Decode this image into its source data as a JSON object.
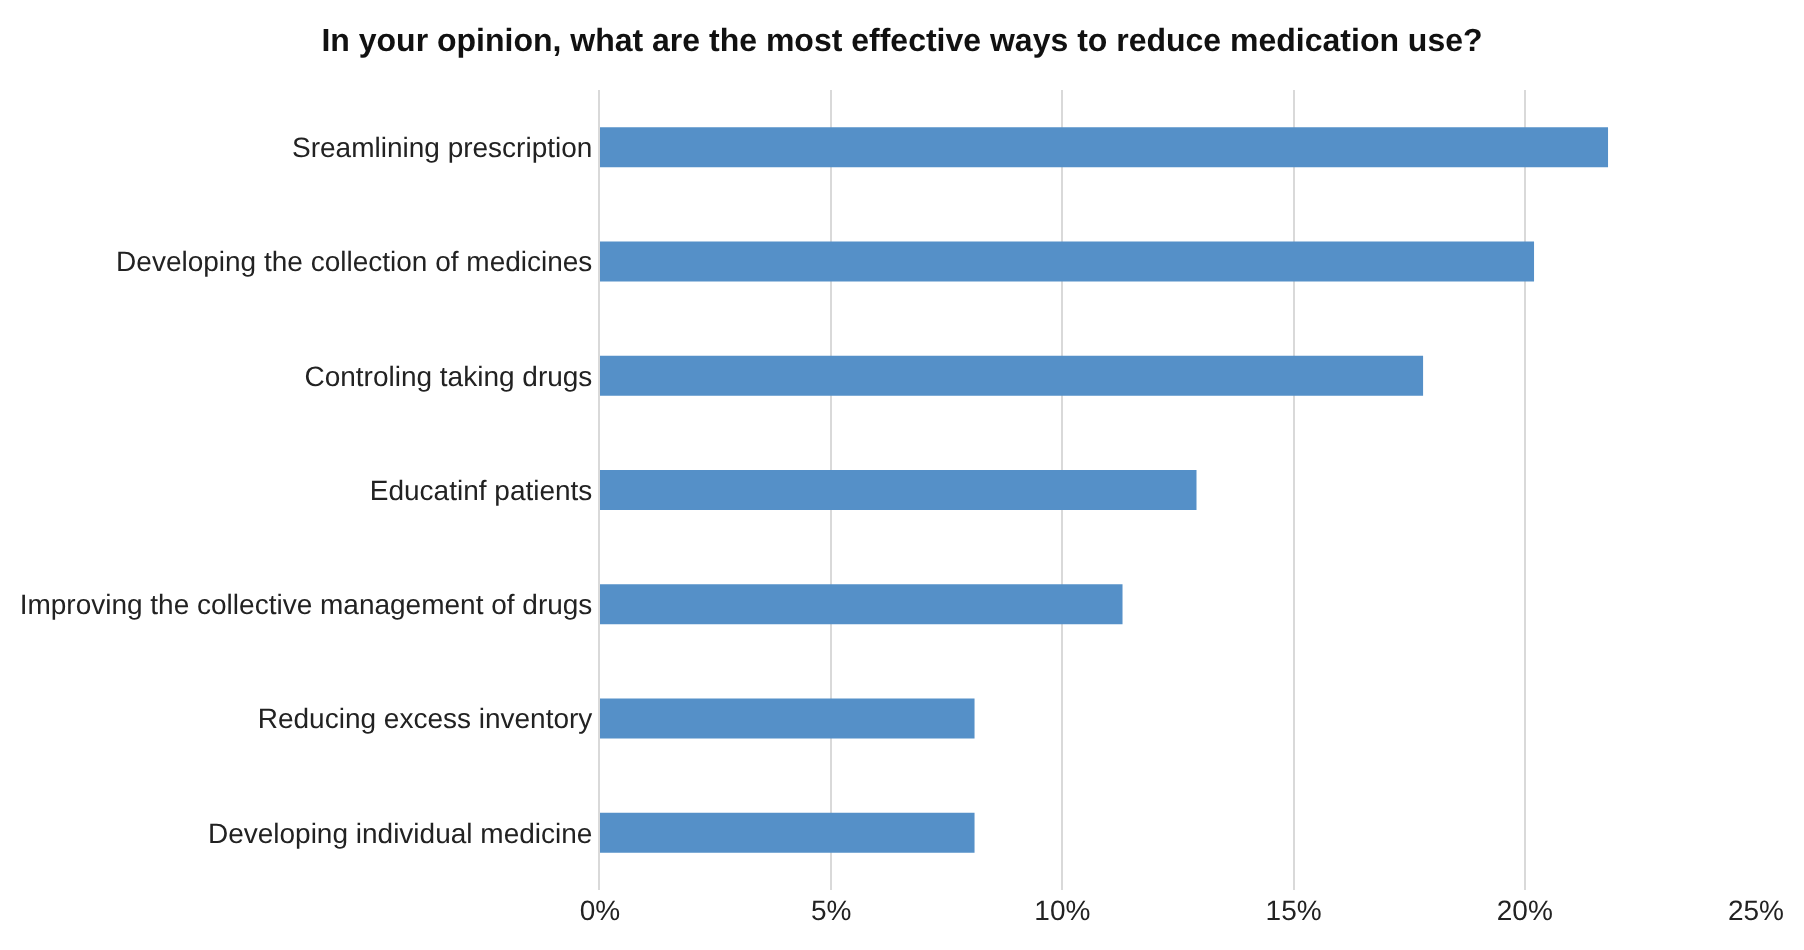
{
  "chart_data": {
    "type": "bar",
    "orientation": "horizontal",
    "title": "In your opinion, what are the most effective ways to reduce medication use?",
    "categories": [
      "Sreamlining prescription",
      "Developing the collection of medicines",
      "Controling taking drugs",
      "Educatinf patients",
      "Improving the collective management of drugs",
      "Reducing excess inventory",
      "Developing individual medicine"
    ],
    "values": [
      21.8,
      20.2,
      17.8,
      12.9,
      11.3,
      8.1,
      8.1
    ],
    "color": "#5590c8",
    "xlim": [
      0,
      25
    ],
    "xticks": [
      {
        "value": 0,
        "label": "0%"
      },
      {
        "value": 5,
        "label": "5%"
      },
      {
        "value": 10,
        "label": "10%"
      },
      {
        "value": 15,
        "label": "15%"
      },
      {
        "value": 20,
        "label": "20%"
      },
      {
        "value": 25,
        "label": "25%"
      }
    ],
    "grid": "x"
  }
}
